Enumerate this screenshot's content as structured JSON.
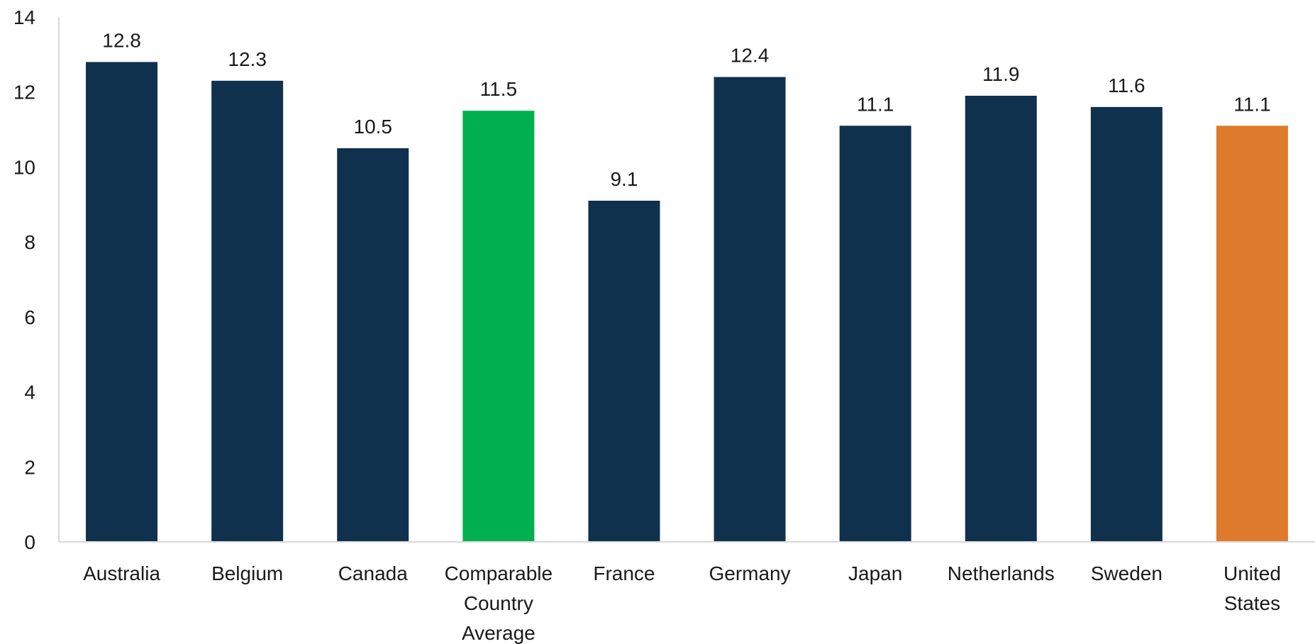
{
  "chart_data": {
    "type": "bar",
    "title": "",
    "xlabel": "",
    "ylabel": "",
    "ylim": [
      0,
      14
    ],
    "yticks": [
      0,
      2,
      4,
      6,
      8,
      10,
      12,
      14
    ],
    "grid": false,
    "legend": "none",
    "categories": [
      "Australia",
      "Belgium",
      "Canada",
      "Comparable Country Average",
      "France",
      "Germany",
      "Japan",
      "Netherlands",
      "Sweden",
      "United States"
    ],
    "category_lines": [
      [
        "Australia"
      ],
      [
        "Belgium"
      ],
      [
        "Canada"
      ],
      [
        "Comparable",
        "Country",
        "Average"
      ],
      [
        "France"
      ],
      [
        "Germany"
      ],
      [
        "Japan"
      ],
      [
        "Netherlands"
      ],
      [
        "Sweden"
      ],
      [
        "United",
        "States"
      ]
    ],
    "values": [
      12.8,
      12.3,
      10.5,
      11.5,
      9.1,
      12.4,
      11.1,
      11.9,
      11.6,
      11.1
    ],
    "value_labels": [
      "12.8",
      "12.3",
      "10.5",
      "11.5",
      "9.1",
      "12.4",
      "11.1",
      "11.9",
      "11.6",
      "11.1"
    ],
    "colors": [
      "#0f314e",
      "#0f314e",
      "#0f314e",
      "#00b050",
      "#0f314e",
      "#0f314e",
      "#0f314e",
      "#0f314e",
      "#0f314e",
      "#de7a2b"
    ]
  }
}
